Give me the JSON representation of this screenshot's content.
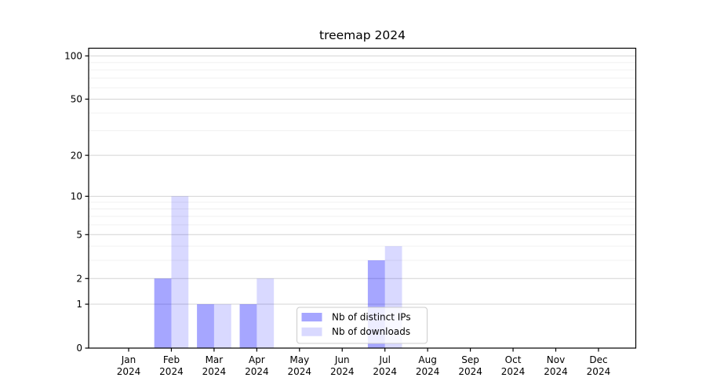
{
  "title": "treemap 2024",
  "chart_data": {
    "type": "bar",
    "title": "treemap 2024",
    "categories": [
      "Jan",
      "Feb",
      "Mar",
      "Apr",
      "May",
      "Jun",
      "Jul",
      "Aug",
      "Sep",
      "Oct",
      "Nov",
      "Dec"
    ],
    "category_year": "2024",
    "series": [
      {
        "name": "Nb of distinct IPs",
        "color": "#0000ff",
        "alpha": 0.35,
        "values": [
          0,
          2,
          1,
          1,
          0,
          0,
          3,
          0,
          0,
          0,
          0,
          0
        ]
      },
      {
        "name": "Nb of downloads",
        "color": "#0000ff",
        "alpha": 0.15,
        "values": [
          0,
          10,
          1,
          2,
          0,
          0,
          4,
          0,
          0,
          0,
          0,
          0
        ]
      }
    ],
    "xlabel": "",
    "ylabel": "",
    "yscale": "log1p-symlog",
    "ylim": [
      0,
      113
    ],
    "yticks": [
      0,
      1,
      2,
      5,
      10,
      20,
      50,
      100
    ],
    "minor_yticks": [
      3,
      4,
      6,
      7,
      8,
      9,
      30,
      40,
      60,
      70,
      80,
      90
    ],
    "grid": true,
    "legend_position": "lower center"
  },
  "colors": {
    "axis": "#000000",
    "major_grid": "#d4d4d4",
    "minor_grid": "#f0f0f0",
    "legend_border": "#cccccc",
    "legend_background": "rgba(255,255,255,0.8)",
    "text": "#000000",
    "background": "#ffffff"
  }
}
